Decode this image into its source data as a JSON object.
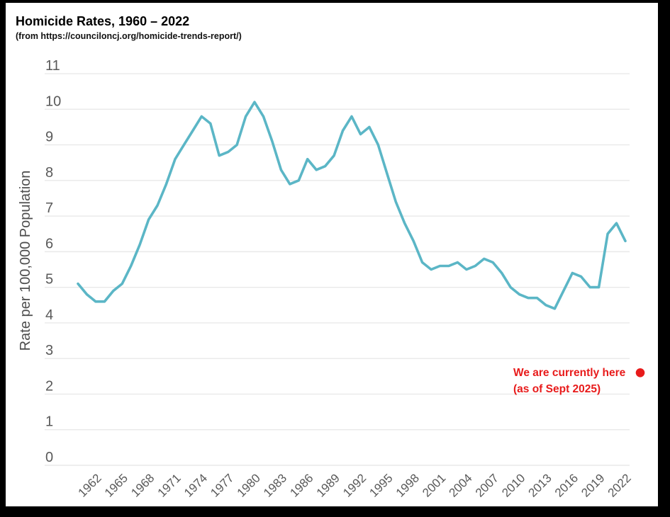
{
  "header": {
    "title": "Homicide Rates, 1960 – 2022",
    "subtitle": "(from https://counciloncj.org/homicide-trends-report/)"
  },
  "chart_data": {
    "type": "line",
    "title": "Homicide Rates, 1960 – 2022",
    "subtitle": "(from https://counciloncj.org/homicide-trends-report/)",
    "xlabel": "",
    "ylabel": "Rate per 100,000 Population",
    "ylim": [
      0,
      11
    ],
    "y_ticks": [
      0,
      1,
      2,
      3,
      4,
      5,
      6,
      7,
      8,
      9,
      10,
      11
    ],
    "grid": true,
    "legend_position": "none",
    "x": [
      1960,
      1961,
      1962,
      1963,
      1964,
      1965,
      1966,
      1967,
      1968,
      1969,
      1970,
      1971,
      1972,
      1973,
      1974,
      1975,
      1976,
      1977,
      1978,
      1979,
      1980,
      1981,
      1982,
      1983,
      1984,
      1985,
      1986,
      1987,
      1988,
      1989,
      1990,
      1991,
      1992,
      1993,
      1994,
      1995,
      1996,
      1997,
      1998,
      1999,
      2000,
      2001,
      2002,
      2003,
      2004,
      2005,
      2006,
      2007,
      2008,
      2009,
      2010,
      2011,
      2012,
      2013,
      2014,
      2015,
      2016,
      2017,
      2018,
      2019,
      2020,
      2021,
      2022
    ],
    "series": [
      {
        "name": "Homicide rate per 100,000 population",
        "values": [
          5.1,
          4.8,
          4.6,
          4.6,
          4.9,
          5.1,
          5.6,
          6.2,
          6.9,
          7.3,
          7.9,
          8.6,
          9.0,
          9.4,
          9.8,
          9.6,
          8.7,
          8.8,
          9.0,
          9.8,
          10.2,
          9.8,
          9.1,
          8.3,
          7.9,
          8.0,
          8.6,
          8.3,
          8.4,
          8.7,
          9.4,
          9.8,
          9.3,
          9.5,
          9.0,
          8.2,
          7.4,
          6.8,
          6.3,
          5.7,
          5.5,
          5.6,
          5.6,
          5.7,
          5.5,
          5.6,
          5.8,
          5.7,
          5.4,
          5.0,
          4.8,
          4.7,
          4.7,
          4.5,
          4.4,
          4.9,
          5.4,
          5.3,
          5.0,
          5.0,
          6.5,
          6.8,
          6.3
        ]
      }
    ],
    "x_tick_labels": [
      "1962",
      "1965",
      "1968",
      "1971",
      "1974",
      "1977",
      "1980",
      "1983",
      "1986",
      "1989",
      "1992",
      "1995",
      "1998",
      "2001",
      "2004",
      "2007",
      "2010",
      "2013",
      "2016",
      "2019",
      "2022"
    ],
    "line_color": "#5bb6c6",
    "grid_color": "#e9e9e9",
    "tick_color": "#595959",
    "axis_title_color": "#4d4d4d",
    "annotation": {
      "line1": "We are currently here",
      "line2": "(as of Sept 2025)",
      "color": "#e81b1b",
      "dot_value": 2.6
    }
  }
}
